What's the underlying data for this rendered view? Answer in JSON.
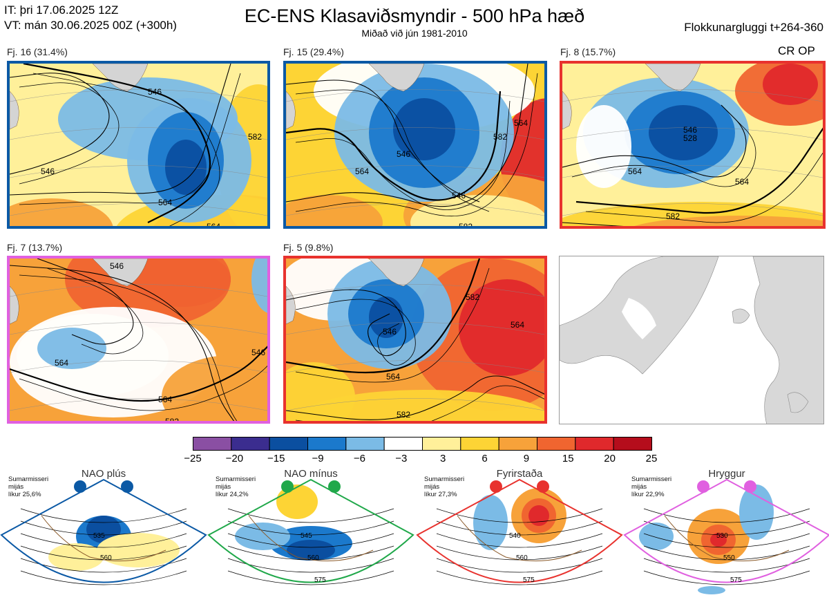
{
  "header": {
    "it": "IT: þri 17.06.2025 12Z",
    "vt": "VT: mán 30.06.2025 00Z  (+300h)",
    "title": "EC-ENS Klasaviðsmyndir - 500 hPa hæð",
    "subtitle": "Miðað við jún 1981-2010",
    "window": "Flokkunargluggi t+264-360"
  },
  "panels": [
    {
      "label": "Fj. 16 (31.4%)",
      "border": "#0b59a5",
      "contours": [
        "546",
        "564",
        "564",
        "582",
        "546"
      ]
    },
    {
      "label": "Fj. 15 (29.4%)",
      "border": "#0b59a5",
      "contours": [
        "546",
        "564",
        "546",
        "582",
        "564",
        "582"
      ]
    },
    {
      "label": "Fj. 8 (15.7%)",
      "border": "#e8322e",
      "contours": [
        "564",
        "582",
        "564",
        "546",
        "528"
      ],
      "tag": "CR OP"
    },
    {
      "label": "Fj. 7 (13.7%)",
      "border": "#e060e0",
      "contours": [
        "546",
        "564",
        "564",
        "546",
        "582"
      ]
    },
    {
      "label": "Fj. 5 (9.8%)",
      "border": "#e8322e",
      "contours": [
        "546",
        "564",
        "582",
        "564",
        "582"
      ]
    }
  ],
  "chart_data": {
    "type": "heatmap",
    "title": "EC-ENS Klasaviðsmyndir - 500 hPa hæð",
    "subtitle": "Miðað við jún 1981-2010",
    "variable": "500 hPa height clusters with anomaly shading",
    "clusters": [
      {
        "name": "Fj. 16",
        "probability_pct": 31.4
      },
      {
        "name": "Fj. 15",
        "probability_pct": 29.4
      },
      {
        "name": "Fj. 8",
        "probability_pct": 15.7
      },
      {
        "name": "Fj. 7",
        "probability_pct": 13.7
      },
      {
        "name": "Fj. 5",
        "probability_pct": 9.8
      }
    ],
    "colorbar": {
      "ticks": [
        "−25",
        "−20",
        "−15",
        "−9",
        "−6",
        "−3",
        "3",
        "6",
        "9",
        "15",
        "20",
        "25"
      ],
      "colors": [
        "#8a4fa3",
        "#3b2d8f",
        "#0b4fa0",
        "#1b79cc",
        "#7bbbe6",
        "#ffffff",
        "#fff09a",
        "#fdd435",
        "#f7a23a",
        "#f06530",
        "#e0292c",
        "#b50d1c"
      ]
    },
    "regimes": [
      {
        "name": "NAO plús",
        "info": [
          "Sumarmisseri",
          "mijás",
          "líkur 25,6%"
        ],
        "color": "#0b59a5",
        "labels": [
          "535",
          "560"
        ]
      },
      {
        "name": "NAO mínus",
        "info": [
          "Sumarmisseri",
          "mijás",
          "líkur 24,2%"
        ],
        "color": "#20a84a",
        "labels": [
          "545",
          "560",
          "575"
        ]
      },
      {
        "name": "Fyrirstaða",
        "info": [
          "Sumarmisseri",
          "mijás",
          "líkur 27,3%"
        ],
        "color": "#e8322e",
        "labels": [
          "540",
          "560",
          "575"
        ]
      },
      {
        "name": "Hryggur",
        "info": [
          "Sumarmisseri",
          "mijás",
          "líkur 22,9%"
        ],
        "color": "#e060e0",
        "labels": [
          "530",
          "550",
          "575"
        ]
      }
    ]
  }
}
